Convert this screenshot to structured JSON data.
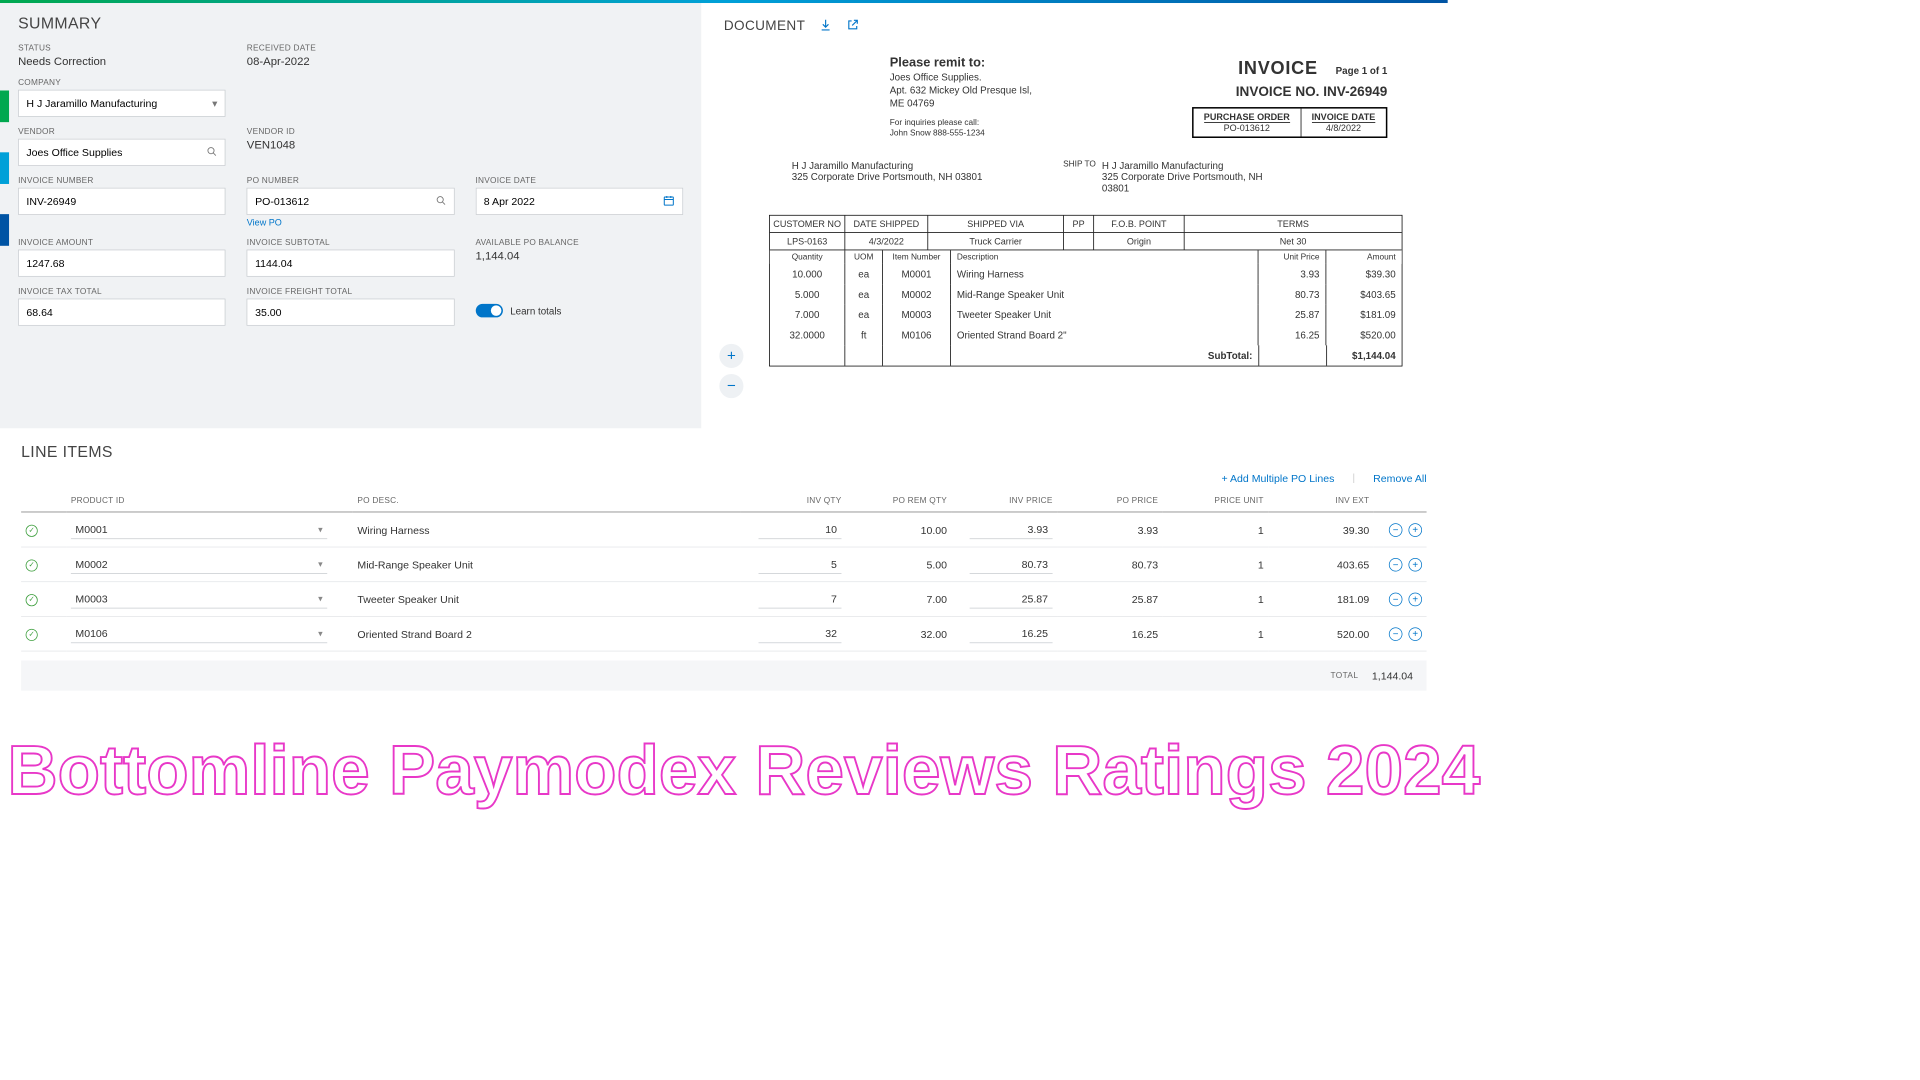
{
  "summary": {
    "title": "SUMMARY",
    "status_label": "STATUS",
    "status": "Needs Correction",
    "received_label": "RECEIVED DATE",
    "received": "08-Apr-2022",
    "company_label": "COMPANY",
    "company": "H J Jaramillo Manufacturing",
    "vendor_label": "VENDOR",
    "vendor": "Joes Office Supplies",
    "vendor_id_label": "VENDOR ID",
    "vendor_id": "VEN1048",
    "invoice_number_label": "INVOICE NUMBER",
    "invoice_number": "INV-26949",
    "po_number_label": "PO NUMBER",
    "po_number": "PO-013612",
    "view_po": "View PO",
    "invoice_date_label": "INVOICE DATE",
    "invoice_date": "8 Apr 2022",
    "invoice_amount_label": "INVOICE AMOUNT",
    "invoice_amount": "1247.68",
    "invoice_subtotal_label": "INVOICE SUBTOTAL",
    "invoice_subtotal": "1144.04",
    "available_po_label": "AVAILABLE PO BALANCE",
    "available_po": "1,144.04",
    "invoice_tax_label": "INVOICE TAX TOTAL",
    "invoice_tax": "68.64",
    "invoice_freight_label": "INVOICE FREIGHT TOTAL",
    "invoice_freight": "35.00",
    "learn_totals": "Learn totals"
  },
  "document": {
    "title": "DOCUMENT",
    "remit_title": "Please remit to:",
    "remit_name": "Joes Office Supplies.",
    "remit_addr1": "Apt. 632 Mickey Old Presque Isl,",
    "remit_addr2": "ME 04769",
    "inquiries1": "For inquiries please call:",
    "inquiries2": "John Snow 888-555-1234",
    "invoice_word": "INVOICE",
    "page": "Page 1 of 1",
    "invoice_no_label": "INVOICE NO. INV-26949",
    "po_hdr": "PURCHASE ORDER",
    "date_hdr": "INVOICE DATE",
    "po_val": "PO-013612",
    "date_val": "4/8/2022",
    "bill_name": "H J Jaramillo Manufacturing",
    "bill_addr": "325 Corporate Drive Portsmouth, NH 03801",
    "shipto_lbl": "SHIP TO",
    "ship_name": "H J Jaramillo Manufacturing",
    "ship_addr1": "325 Corporate Drive Portsmouth, NH",
    "ship_addr2": "03801",
    "h_cust": "CUSTOMER NO",
    "h_dateship": "DATE SHIPPED",
    "h_via": "SHIPPED VIA",
    "h_pp": "PP",
    "h_fob": "F.O.B. POINT",
    "h_terms": "TERMS",
    "r_cust": "LPS-0163",
    "r_dateship": "4/3/2022",
    "r_via": "Truck Carrier",
    "r_pp": "",
    "r_fob": "Origin",
    "r_terms": "Net 30",
    "h2_qty": "Quantity",
    "h2_uom": "UOM",
    "h2_item": "Item Number",
    "h2_desc": "Description",
    "h2_up": "Unit Price",
    "h2_amt": "Amount",
    "lines": [
      {
        "qty": "10.000",
        "uom": "ea",
        "item": "M0001",
        "desc": "Wiring Harness",
        "up": "3.93",
        "amt": "$39.30"
      },
      {
        "qty": "5.000",
        "uom": "ea",
        "item": "M0002",
        "desc": "Mid-Range Speaker Unit",
        "up": "80.73",
        "amt": "$403.65"
      },
      {
        "qty": "7.000",
        "uom": "ea",
        "item": "M0003",
        "desc": "Tweeter Speaker Unit",
        "up": "25.87",
        "amt": "$181.09"
      },
      {
        "qty": "32.0000",
        "uom": "ft",
        "item": "M0106",
        "desc": "Oriented Strand Board 2\"",
        "up": "16.25",
        "amt": "$520.00"
      }
    ],
    "subtotal_lbl": "SubTotal:",
    "subtotal_val": "$1,144.04"
  },
  "lineitems": {
    "title": "LINE ITEMS",
    "add_multiple": "+ Add Multiple PO Lines",
    "remove_all": "Remove All",
    "cols": {
      "product": "PRODUCT ID",
      "podesc": "PO DESC.",
      "invqty": "INV QTY",
      "poremqty": "PO REM QTY",
      "invprice": "INV PRICE",
      "poprice": "PO PRICE",
      "priceunit": "PRICE UNIT",
      "invext": "INV EXT"
    },
    "rows": [
      {
        "product": "M0001",
        "podesc": "Wiring Harness",
        "invqty": "10",
        "poremqty": "10.00",
        "invprice": "3.93",
        "poprice": "3.93",
        "priceunit": "1",
        "invext": "39.30"
      },
      {
        "product": "M0002",
        "podesc": "Mid-Range Speaker Unit",
        "invqty": "5",
        "poremqty": "5.00",
        "invprice": "80.73",
        "poprice": "80.73",
        "priceunit": "1",
        "invext": "403.65"
      },
      {
        "product": "M0003",
        "podesc": "Tweeter Speaker Unit",
        "invqty": "7",
        "poremqty": "7.00",
        "invprice": "25.87",
        "poprice": "25.87",
        "priceunit": "1",
        "invext": "181.09"
      },
      {
        "product": "M0106",
        "podesc": "Oriented Strand Board 2",
        "invqty": "32",
        "poremqty": "32.00",
        "invprice": "16.25",
        "poprice": "16.25",
        "priceunit": "1",
        "invext": "520.00"
      }
    ],
    "total_lbl": "TOTAL",
    "total_val": "1,144.04"
  },
  "overlay": "Bottomline Paymodex Reviews Ratings 2024",
  "colors": {
    "accent": "#0075c9"
  }
}
